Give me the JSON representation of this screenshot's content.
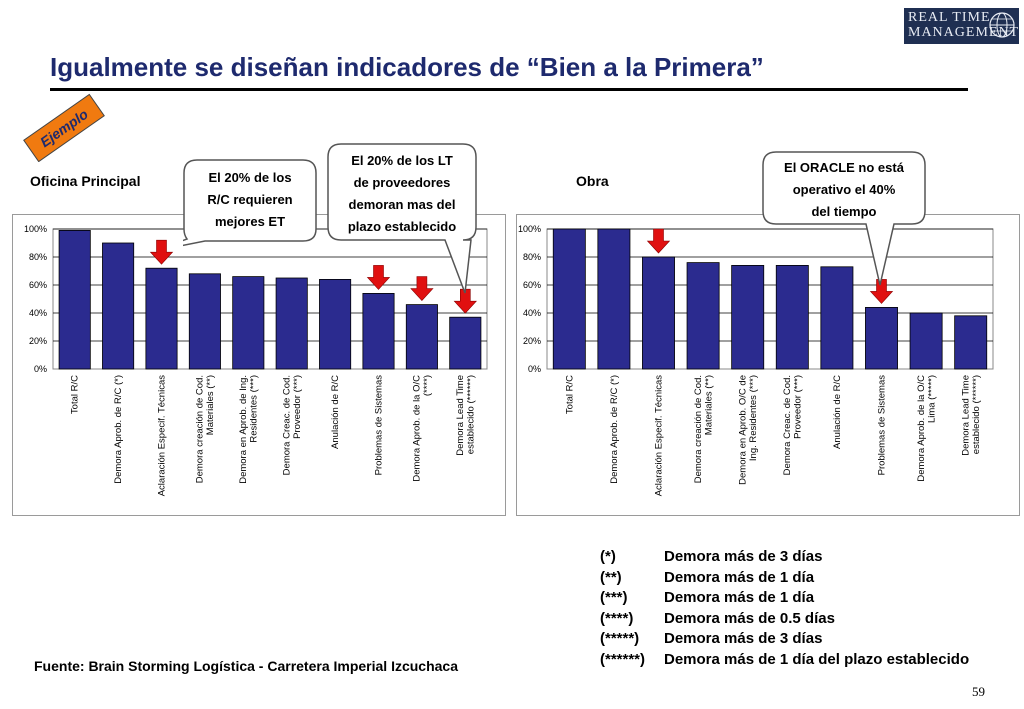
{
  "logo": {
    "line1": "REAL TIME",
    "line2": "MANAGEMENT"
  },
  "title": "Igualmente se diseñan indicadores de “Bien a la Primera”",
  "badge": "Ejemplo",
  "panels": {
    "left_title": "Oficina Principal",
    "right_title": "Obra"
  },
  "callouts": {
    "c1": [
      "El 20% de los",
      "R/C requieren",
      "mejores ET"
    ],
    "c2": [
      "El 20% de los LT",
      "de proveedores",
      "demoran mas del",
      "plazo establecido"
    ],
    "c3": [
      "El ORACLE no está",
      "operativo el 40%",
      "del tiempo"
    ]
  },
  "colors": {
    "bar": "#2b2b8f",
    "bar_edge": "#000000",
    "arrow": "#e01010",
    "title": "#1e2a6e",
    "logo_bg": "#1f2f52"
  },
  "chart_data": [
    {
      "type": "bar",
      "title": "Oficina Principal",
      "categories": [
        [
          "Total R/C"
        ],
        [
          "Demora Aprob. de R/C (*)"
        ],
        [
          "Aclaración Especif. Técnicas"
        ],
        [
          "Demora creación de Cod.",
          "Materiales (**)"
        ],
        [
          "Demora en Aprob. de Ing.",
          "Residentes (***)"
        ],
        [
          "Demora Creac. de Cod.",
          "Proveedor (***)"
        ],
        [
          "Anulación de R/C"
        ],
        [
          "Problemas de Sistemas"
        ],
        [
          "Demora Aprob. de la O/C",
          "(****)"
        ],
        [
          "Demora Lead Time",
          "establecido (******)"
        ]
      ],
      "values": [
        99,
        90,
        72,
        68,
        66,
        65,
        64,
        54,
        46,
        37
      ],
      "arrows_on": [
        2,
        7,
        8,
        9
      ],
      "ylim": [
        0,
        100
      ],
      "yticks": [
        "0%",
        "20%",
        "40%",
        "60%",
        "80%",
        "100%"
      ],
      "grid": true,
      "legend": "none"
    },
    {
      "type": "bar",
      "title": "Obra",
      "categories": [
        [
          "Total R/C"
        ],
        [
          "Demora Aprob. de R/C (*)"
        ],
        [
          "Aclaración Especif. Técnicas"
        ],
        [
          "Demora creación de Cod.",
          "Materiales (**)"
        ],
        [
          "Demora en Aprob. O/C de",
          "Ing. Residentes (***)"
        ],
        [
          "Demora Creac. de Cod.",
          "Proveedor (***)"
        ],
        [
          "Anulación de R/C"
        ],
        [
          "Problemas de Sistemas"
        ],
        [
          "Demora Aprob. de la O/C",
          "Lima (*****)"
        ],
        [
          "Demora Lead Time",
          "establecido (******)"
        ]
      ],
      "values": [
        100,
        100,
        80,
        76,
        74,
        74,
        73,
        44,
        40,
        38
      ],
      "arrows_on": [
        2,
        7
      ],
      "ylim": [
        0,
        100
      ],
      "yticks": [
        "0%",
        "20%",
        "40%",
        "60%",
        "80%",
        "100%"
      ],
      "grid": true,
      "legend": "none"
    }
  ],
  "footnotes": [
    {
      "key": "(*)",
      "text": "Demora más de 3 días"
    },
    {
      "key": "(**)",
      "text": "Demora más de 1 día"
    },
    {
      "key": "(***)",
      "text": "Demora más de 1 día"
    },
    {
      "key": "(****)",
      "text": "Demora más de 0.5 días"
    },
    {
      "key": "(*****)",
      "text": "Demora más de 3 días"
    },
    {
      "key": "(******)",
      "text": "Demora más de 1 día del plazo establecido"
    }
  ],
  "source": "Fuente: Brain Storming Logística - Carretera Imperial Izcuchaca",
  "page_number": "59"
}
